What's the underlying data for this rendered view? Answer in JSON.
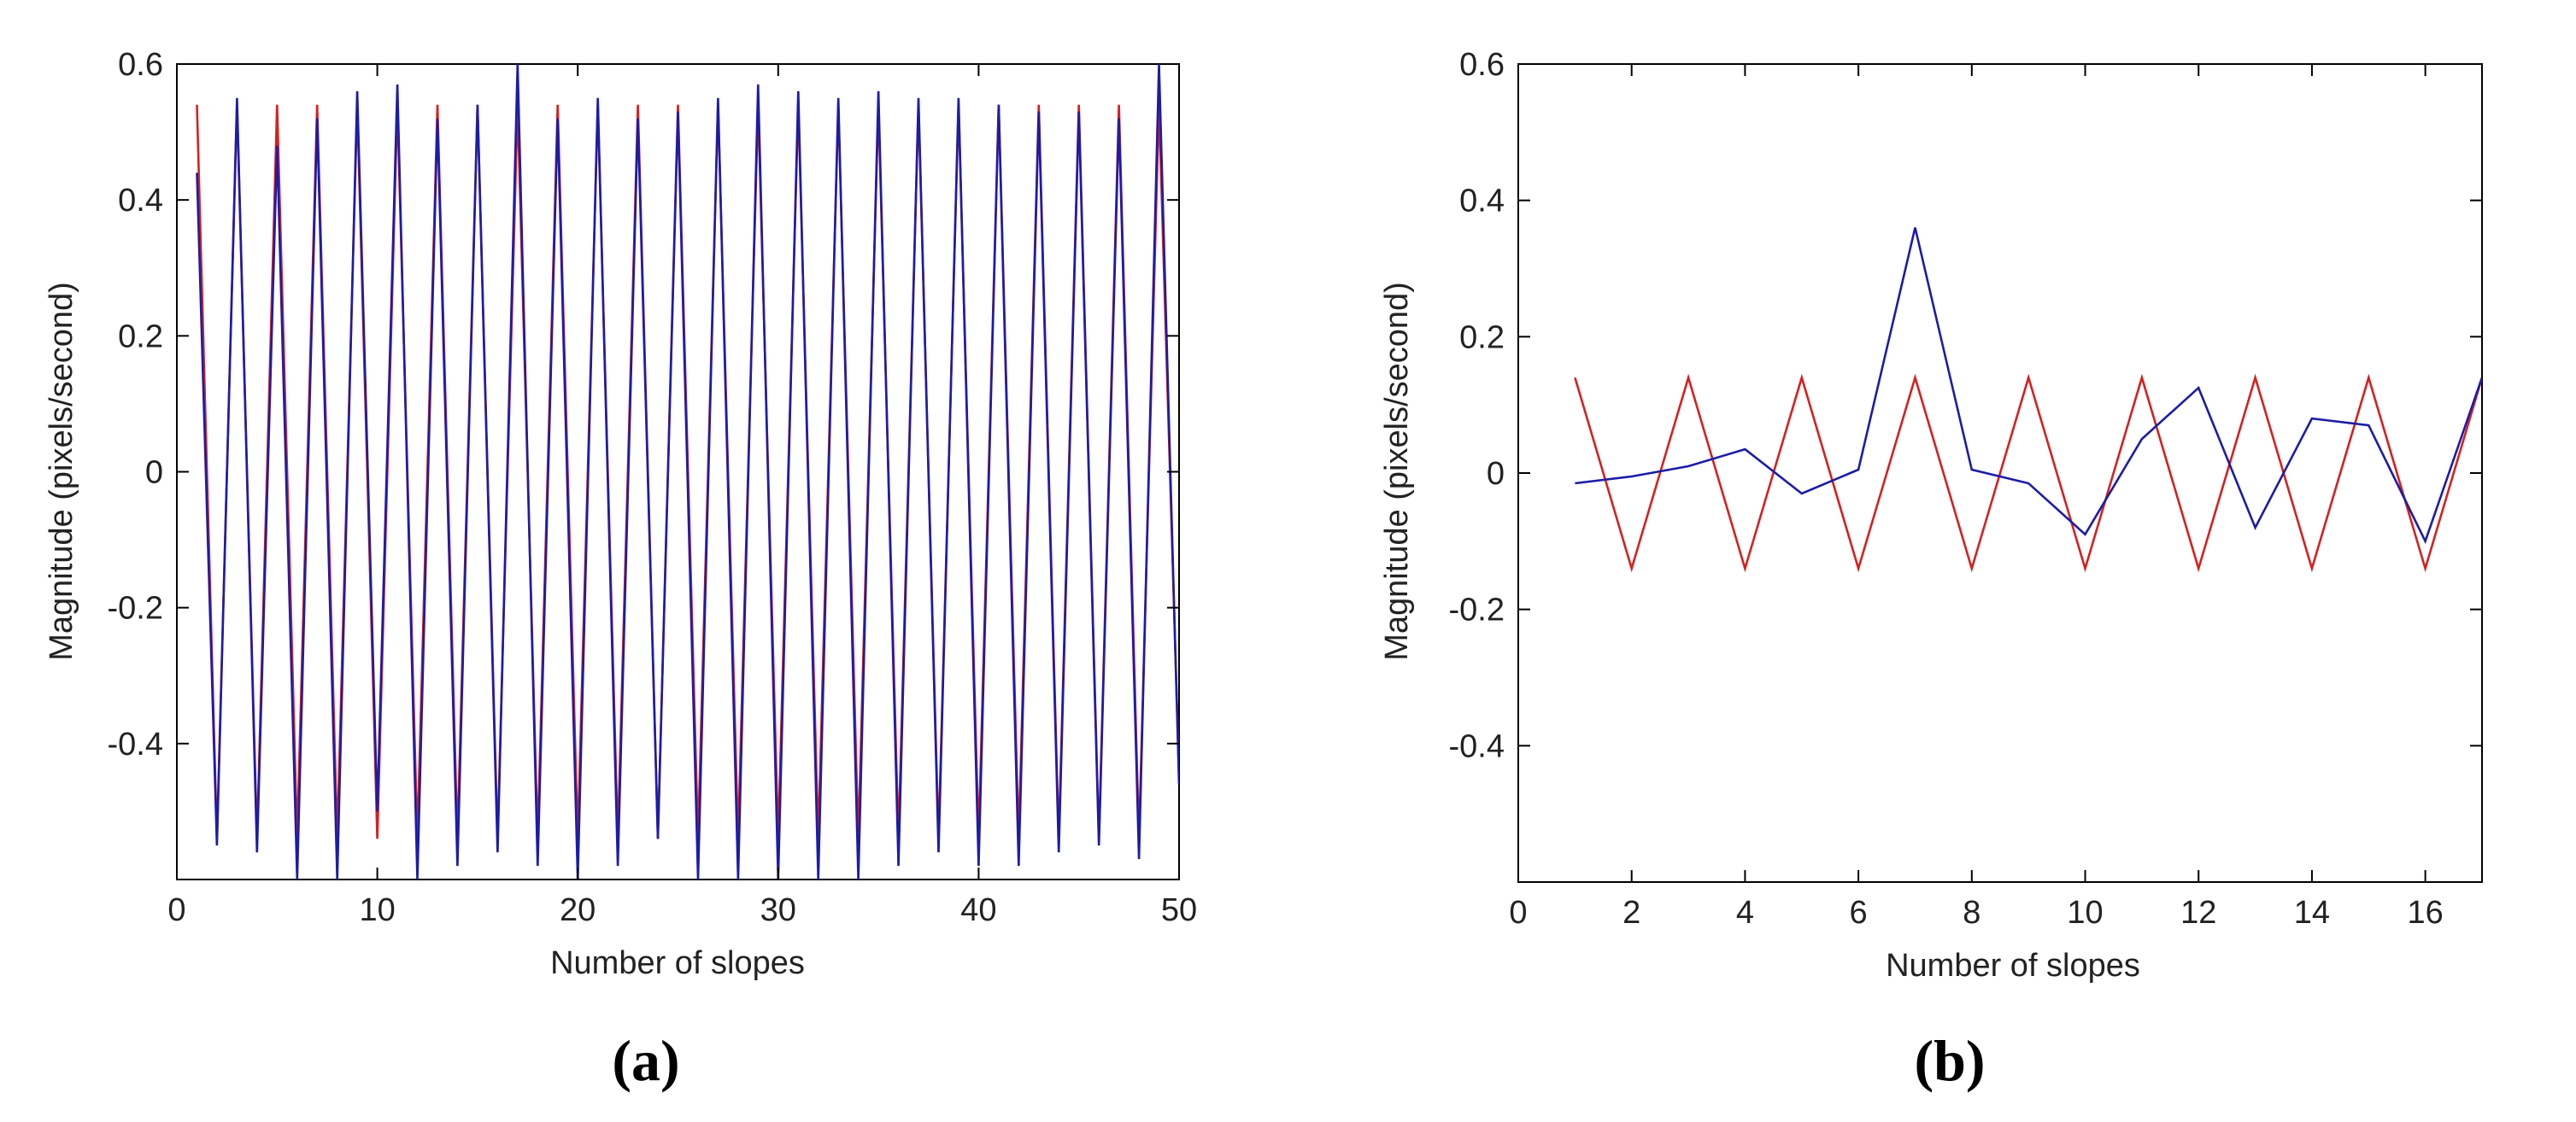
{
  "chart_data": [
    {
      "panel": "(a)",
      "type": "line",
      "xlabel": "Number of slopes",
      "ylabel": "Magnitude (pixels/second)",
      "xlim": [
        0,
        50
      ],
      "ylim": [
        -0.6,
        0.6
      ],
      "xticks": [
        "0",
        "10",
        "20",
        "30",
        "40",
        "50"
      ],
      "yticks": [
        "-0.4",
        "-0.2",
        "0",
        "0.2",
        "0.4",
        "0.6"
      ],
      "grid": false,
      "colors": [
        "#d62020",
        "#1c1ca8"
      ],
      "x": [
        1,
        2,
        3,
        4,
        5,
        6,
        7,
        8,
        9,
        10,
        11,
        12,
        13,
        14,
        15,
        16,
        17,
        18,
        19,
        20,
        21,
        22,
        23,
        24,
        25,
        26,
        27,
        28,
        29,
        30,
        31,
        32,
        33,
        34,
        35,
        36,
        37,
        38,
        39,
        40,
        41,
        42,
        43,
        44,
        45,
        46,
        47,
        48,
        49,
        50
      ],
      "series": [
        {
          "values": [
            0.54,
            -0.54,
            0.54,
            -0.54,
            0.54,
            -0.54,
            0.54,
            -0.54,
            0.54,
            -0.54,
            0.54,
            -0.54,
            0.54,
            -0.54,
            0.54,
            -0.54,
            0.54,
            -0.54,
            0.54,
            -0.54,
            0.54,
            -0.54,
            0.54,
            -0.54,
            0.54,
            -0.54,
            0.54,
            -0.54,
            0.54,
            -0.54,
            0.54,
            -0.54,
            0.54,
            -0.54,
            0.54,
            -0.54,
            0.54,
            -0.54,
            0.54,
            -0.54,
            0.54,
            -0.54,
            0.54,
            -0.54,
            0.54,
            -0.54,
            0.54,
            -0.54,
            0.54,
            -0.45
          ]
        },
        {
          "values": [
            0.44,
            -0.55,
            0.55,
            -0.56,
            0.48,
            -0.6,
            0.52,
            -0.6,
            0.56,
            -0.5,
            0.57,
            -0.6,
            0.52,
            -0.58,
            0.54,
            -0.56,
            0.6,
            -0.58,
            0.52,
            -0.6,
            0.55,
            -0.58,
            0.52,
            -0.54,
            0.53,
            -0.6,
            0.55,
            -0.6,
            0.57,
            -0.6,
            0.56,
            -0.6,
            0.55,
            -0.6,
            0.56,
            -0.58,
            0.55,
            -0.56,
            0.55,
            -0.58,
            0.54,
            -0.58,
            0.53,
            -0.56,
            0.53,
            -0.55,
            0.52,
            -0.57,
            0.6,
            -0.46
          ]
        }
      ]
    },
    {
      "panel": "(b)",
      "type": "line",
      "xlabel": "Number of slopes",
      "ylabel": "Magnitude (pixels/second)",
      "xlim": [
        0,
        17
      ],
      "ylim": [
        -0.6,
        0.6
      ],
      "xticks": [
        "0",
        "2",
        "4",
        "6",
        "8",
        "10",
        "12",
        "14",
        "16"
      ],
      "yticks": [
        "-0.4",
        "-0.2",
        "0",
        "0.2",
        "0.4",
        "0.6"
      ],
      "grid": false,
      "colors": [
        "#d62020",
        "#1c1ca8"
      ],
      "x": [
        1,
        2,
        3,
        4,
        5,
        6,
        7,
        8,
        9,
        10,
        11,
        12,
        13,
        14,
        15,
        16,
        17
      ],
      "series": [
        {
          "values": [
            0.14,
            -0.14,
            0.14,
            -0.14,
            0.14,
            -0.14,
            0.14,
            -0.14,
            0.14,
            -0.14,
            0.14,
            -0.14,
            0.14,
            -0.14,
            0.14,
            -0.14,
            0.14
          ]
        },
        {
          "values": [
            -0.015,
            -0.005,
            0.01,
            0.035,
            -0.03,
            0.005,
            0.36,
            0.005,
            -0.015,
            -0.09,
            0.05,
            0.125,
            -0.08,
            0.08,
            0.07,
            -0.1,
            0.14
          ]
        }
      ]
    }
  ]
}
